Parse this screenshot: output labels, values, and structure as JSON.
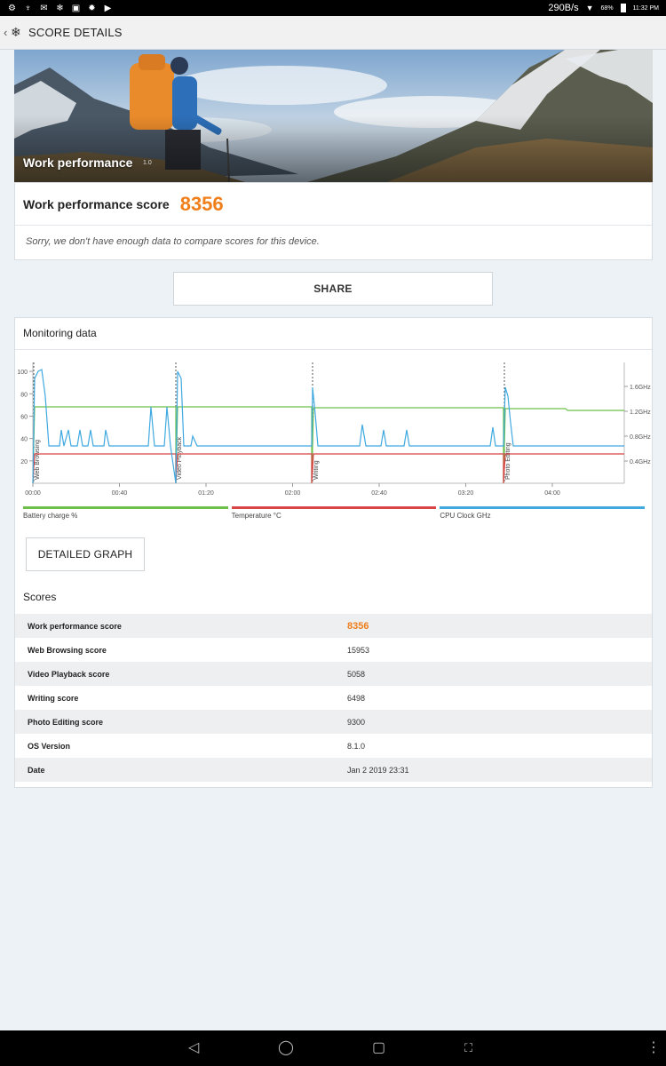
{
  "status_bar": {
    "notification_icons": [
      "settings-icon",
      "usb-icon",
      "gmail-icon",
      "snowflake-icon",
      "image-icon",
      "gear-icon",
      "play-store-icon"
    ],
    "speed": "290B/s",
    "battery": "68%",
    "time": "11:32 PM"
  },
  "action_bar": {
    "title": "SCORE DETAILS"
  },
  "hero": {
    "title": "Work performance",
    "version": "1.0"
  },
  "score": {
    "label": "Work performance score",
    "value": "8356",
    "note": "Sorry, we don't have enough data to compare scores for this device."
  },
  "share_label": "SHARE",
  "monitoring": {
    "title": "Monitoring data",
    "detailed_graph_label": "DETAILED GRAPH",
    "legend": [
      {
        "label": "Battery charge %",
        "color": "#6cc04a"
      },
      {
        "label": "Temperature °C",
        "color": "#d84545"
      },
      {
        "label": "CPU Clock GHz",
        "color": "#3fa9e0"
      }
    ]
  },
  "chart_data": {
    "type": "line",
    "x_ticks": [
      "00:00",
      "00:40",
      "01:20",
      "02:00",
      "02:40",
      "03:20",
      "04:00"
    ],
    "y_left_ticks": [
      100,
      80,
      60,
      40,
      20
    ],
    "y_right_ticks": [
      "1.6GHz",
      "1.2GHz",
      "0.8GHz",
      "0.4GHz"
    ],
    "markers": [
      "Web Browsing",
      "Video Playback",
      "Writing",
      "Photo Editing"
    ],
    "series": [
      {
        "name": "Battery charge %",
        "color": "#6cc04a"
      },
      {
        "name": "Temperature °C",
        "color": "#d84545"
      },
      {
        "name": "CPU Clock GHz",
        "color": "#3fa9e0"
      }
    ]
  },
  "scores_title": "Scores",
  "scores_table": [
    {
      "label": "Work performance score",
      "value": "8356",
      "highlight": true
    },
    {
      "label": "Web Browsing score",
      "value": "15953"
    },
    {
      "label": "Video Playback score",
      "value": "5058"
    },
    {
      "label": "Writing score",
      "value": "6498"
    },
    {
      "label": "Photo Editing score",
      "value": "9300"
    },
    {
      "label": "OS Version",
      "value": "8.1.0"
    },
    {
      "label": "Date",
      "value": "Jan 2 2019 23:31"
    }
  ],
  "nav_bar": {
    "icons": [
      "back-icon",
      "home-icon",
      "recents-icon",
      "screenshot-icon",
      "menu-icon"
    ]
  }
}
